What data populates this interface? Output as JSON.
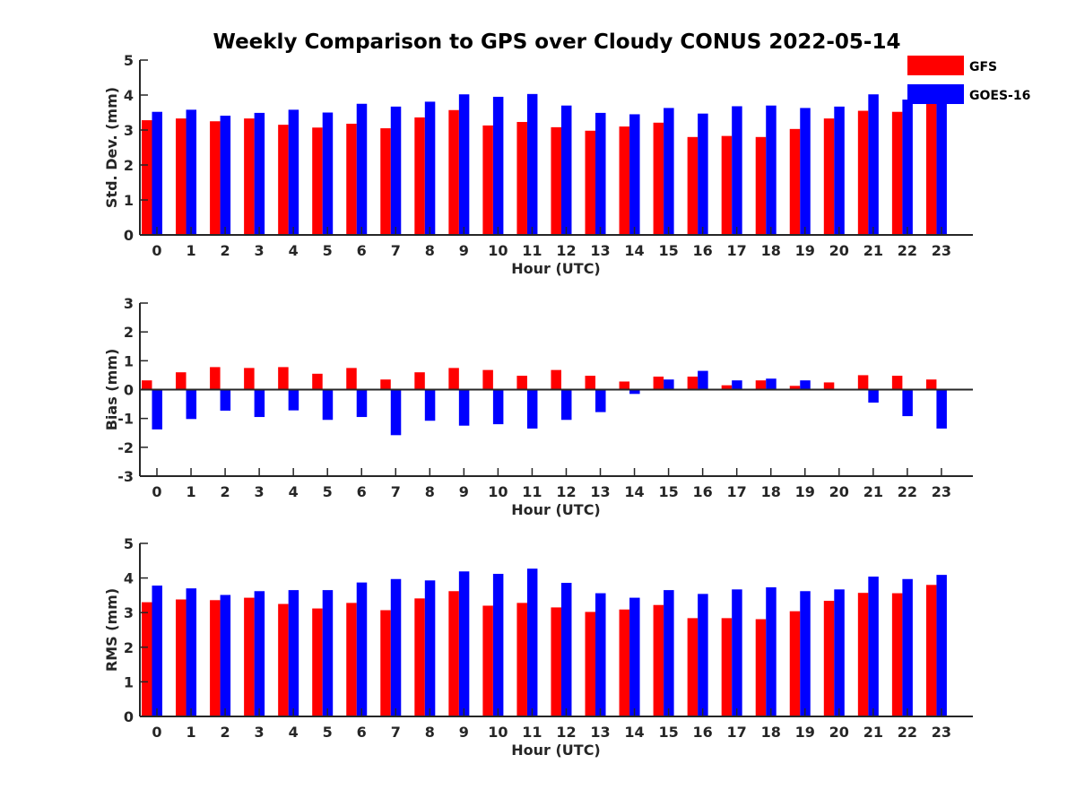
{
  "figure": {
    "title": "Weekly Comparison to GPS over Cloudy CONUS 2022-05-14"
  },
  "legend": {
    "placement": "top-right",
    "entries": [
      {
        "label": "GFS",
        "color": "#ff0000"
      },
      {
        "label": "GOES-16",
        "color": "#0000ff"
      }
    ]
  },
  "chart_data": [
    {
      "type": "bar",
      "xlabel": "Hour (UTC)",
      "ylabel": "Std. Dev. (mm)",
      "ylim": [
        0,
        5
      ],
      "yticks": [
        0,
        1,
        2,
        3,
        4,
        5
      ],
      "categories": [
        "0",
        "1",
        "2",
        "3",
        "4",
        "5",
        "6",
        "7",
        "8",
        "9",
        "10",
        "11",
        "12",
        "13",
        "14",
        "15",
        "16",
        "17",
        "18",
        "19",
        "20",
        "21",
        "22",
        "23"
      ],
      "grid": false,
      "series": [
        {
          "name": "GFS",
          "color": "#ff0000",
          "values": [
            3.28,
            3.33,
            3.25,
            3.33,
            3.15,
            3.07,
            3.18,
            3.05,
            3.36,
            3.57,
            3.13,
            3.23,
            3.08,
            2.98,
            3.1,
            3.21,
            2.8,
            2.83,
            2.8,
            3.03,
            3.33,
            3.55,
            3.52,
            3.78
          ]
        },
        {
          "name": "GOES-16",
          "color": "#0000ff",
          "values": [
            3.52,
            3.58,
            3.41,
            3.49,
            3.58,
            3.5,
            3.75,
            3.67,
            3.81,
            4.02,
            3.95,
            4.03,
            3.7,
            3.49,
            3.45,
            3.63,
            3.47,
            3.68,
            3.7,
            3.63,
            3.67,
            4.02,
            3.87,
            3.9
          ]
        }
      ]
    },
    {
      "type": "bar",
      "xlabel": "Hour (UTC)",
      "ylabel": "Bias (mm)",
      "ylim": [
        -3,
        3
      ],
      "yticks": [
        -3,
        -2,
        -1,
        0,
        1,
        2,
        3
      ],
      "categories": [
        "0",
        "1",
        "2",
        "3",
        "4",
        "5",
        "6",
        "7",
        "8",
        "9",
        "10",
        "11",
        "12",
        "13",
        "14",
        "15",
        "16",
        "17",
        "18",
        "19",
        "20",
        "21",
        "22",
        "23"
      ],
      "grid": false,
      "series": [
        {
          "name": "GFS",
          "color": "#ff0000",
          "values": [
            0.32,
            0.6,
            0.78,
            0.75,
            0.78,
            0.55,
            0.75,
            0.35,
            0.6,
            0.75,
            0.68,
            0.48,
            0.68,
            0.48,
            0.28,
            0.45,
            0.45,
            0.15,
            0.32,
            0.13,
            0.25,
            0.5,
            0.48,
            0.35
          ]
        },
        {
          "name": "GOES-16",
          "color": "#0000ff",
          "values": [
            -1.38,
            -1.02,
            -0.73,
            -0.95,
            -0.72,
            -1.05,
            -0.95,
            -1.58,
            -1.08,
            -1.25,
            -1.2,
            -1.35,
            -1.05,
            -0.78,
            -0.15,
            0.35,
            0.65,
            0.32,
            0.38,
            0.32,
            0.03,
            -0.45,
            -0.92,
            -1.35
          ]
        }
      ]
    },
    {
      "type": "bar",
      "xlabel": "Hour (UTC)",
      "ylabel": "RMS (mm)",
      "ylim": [
        0,
        5
      ],
      "yticks": [
        0,
        1,
        2,
        3,
        4,
        5
      ],
      "categories": [
        "0",
        "1",
        "2",
        "3",
        "4",
        "5",
        "6",
        "7",
        "8",
        "9",
        "10",
        "11",
        "12",
        "13",
        "14",
        "15",
        "16",
        "17",
        "18",
        "19",
        "20",
        "21",
        "22",
        "23"
      ],
      "grid": false,
      "series": [
        {
          "name": "GFS",
          "color": "#ff0000",
          "values": [
            3.3,
            3.38,
            3.36,
            3.43,
            3.25,
            3.12,
            3.28,
            3.07,
            3.41,
            3.62,
            3.2,
            3.28,
            3.15,
            3.02,
            3.09,
            3.22,
            2.84,
            2.84,
            2.81,
            3.04,
            3.34,
            3.57,
            3.56,
            3.8
          ]
        },
        {
          "name": "GOES-16",
          "color": "#0000ff",
          "values": [
            3.78,
            3.7,
            3.51,
            3.62,
            3.65,
            3.65,
            3.87,
            3.97,
            3.93,
            4.19,
            4.12,
            4.27,
            3.86,
            3.56,
            3.43,
            3.65,
            3.54,
            3.67,
            3.73,
            3.62,
            3.67,
            4.04,
            3.97,
            4.09
          ]
        }
      ]
    }
  ]
}
